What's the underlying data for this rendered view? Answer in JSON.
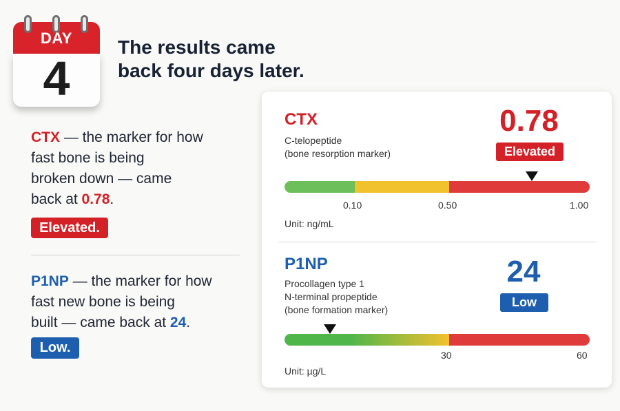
{
  "calendar": {
    "label": "DAY",
    "number": "4"
  },
  "headline": {
    "line1": "The results came",
    "line2": "back four days later."
  },
  "ctx_text": {
    "key": "CTX",
    "line1_rest": " — the marker for how",
    "line2": "fast bone is being",
    "line3": "broken down — came",
    "line4_prefix": "back at ",
    "value": "0.78",
    "line4_suffix": ".",
    "badge": "Elevated."
  },
  "p1np_text": {
    "key": "P1NP",
    "line1_rest": " — the marker for how",
    "line2": "fast new bone is being",
    "line3_prefix": "built — came back at ",
    "value": "24",
    "line3_suffix": ".",
    "badge": "Low."
  },
  "card": {
    "ctx": {
      "abbr": "CTX",
      "desc1": "C-telopeptide",
      "desc2": "(bone resorption marker)",
      "value": "0.78",
      "status": "Elevated",
      "ticks": [
        "0.10",
        "0.50",
        "1.00"
      ],
      "unit": "Unit: ng/mL",
      "marker_fraction": 0.81,
      "colors": {
        "green": "#6cbf5a",
        "yellow": "#f2c12e",
        "red": "#df3b3b"
      }
    },
    "p1np": {
      "abbr": "P1NP",
      "desc1": "Procollagen type 1",
      "desc2": "N-terminal propeptide",
      "desc3": "(bone formation marker)",
      "value": "24",
      "status": "Low",
      "ticks": [
        "30",
        "60"
      ],
      "unit": "Unit: µg/L",
      "marker_fraction": 0.15,
      "colors": {
        "green": "#4fb64a",
        "yellow": "#f2c12e",
        "red": "#df3b3b"
      }
    }
  }
}
